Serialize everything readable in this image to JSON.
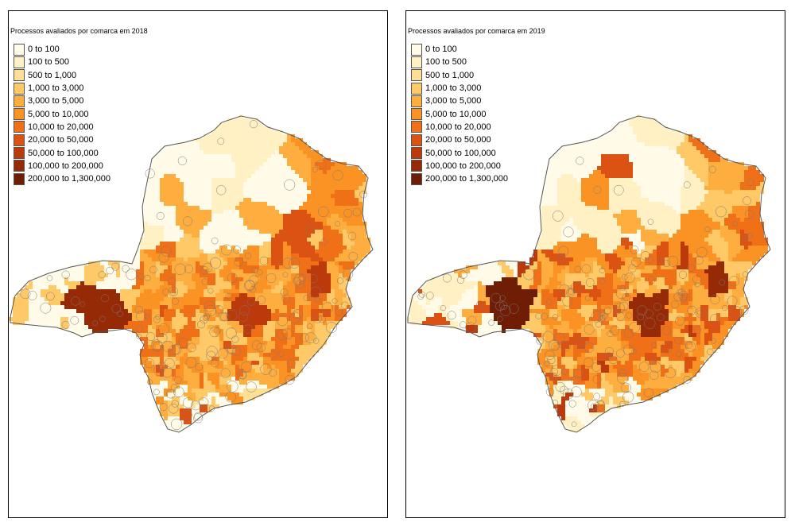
{
  "maps": [
    {
      "title": "Processos avaliados por comarca em 2018",
      "dark_clusters": [
        {
          "name": "west",
          "cx": 112,
          "cy": 370,
          "r": 30,
          "cls": 9
        },
        {
          "name": "center",
          "cx": 300,
          "cy": 380,
          "r": 22,
          "cls": 8
        },
        {
          "name": "east",
          "cx": 392,
          "cy": 340,
          "r": 18,
          "cls": 8
        }
      ],
      "palette_bias": 0
    },
    {
      "title": "Processos avaliados por comarca em 2019",
      "dark_clusters": [
        {
          "name": "west",
          "cx": 127,
          "cy": 365,
          "r": 32,
          "cls": 10
        },
        {
          "name": "center",
          "cx": 305,
          "cy": 380,
          "r": 24,
          "cls": 9
        },
        {
          "name": "east",
          "cx": 392,
          "cy": 340,
          "r": 18,
          "cls": 9
        }
      ],
      "palette_bias": 1
    }
  ],
  "legend": [
    {
      "label": "0 to 100",
      "color": "#fffbe8"
    },
    {
      "label": "100 to 500",
      "color": "#fff1c4"
    },
    {
      "label": "500 to 1,000",
      "color": "#fedf96"
    },
    {
      "label": "1,000 to 3,000",
      "color": "#fec966"
    },
    {
      "label": "3,000 to 5,000",
      "color": "#feae3f"
    },
    {
      "label": "5,000 to 10,000",
      "color": "#fb9224"
    },
    {
      "label": "10,000 to 20,000",
      "color": "#f07018"
    },
    {
      "label": "20,000 to 50,000",
      "color": "#dc5212"
    },
    {
      "label": "50,000 to 100,000",
      "color": "#bc390b"
    },
    {
      "label": "100,000 to 200,000",
      "color": "#972a06"
    },
    {
      "label": "200,000 to 1,300,000",
      "color": "#6f1d04"
    }
  ]
}
